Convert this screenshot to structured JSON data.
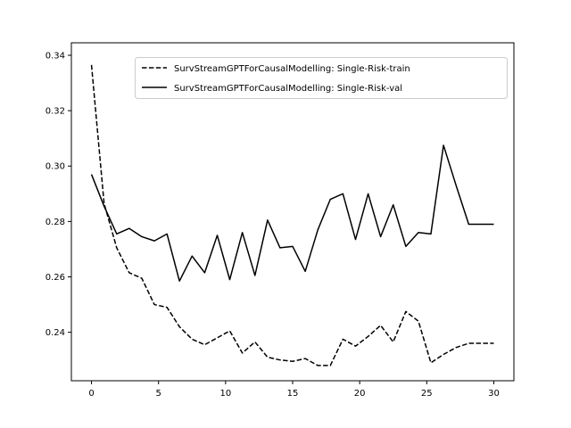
{
  "chart_data": {
    "type": "line",
    "title": "",
    "xlabel": "",
    "ylabel": "",
    "xlim": [
      -1.5,
      31.5
    ],
    "ylim": [
      0.2225,
      0.3445
    ],
    "xticks": [
      0,
      5,
      10,
      15,
      20,
      25,
      30
    ],
    "yticks": [
      0.24,
      0.26,
      0.28,
      0.3,
      0.32,
      0.34
    ],
    "ytick_labels": [
      "0.24",
      "0.26",
      "0.28",
      "0.30",
      "0.32",
      "0.34"
    ],
    "grid": false,
    "legend_position": "upper right",
    "x": [
      0,
      0.94,
      1.88,
      2.81,
      3.75,
      4.69,
      5.63,
      6.56,
      7.5,
      8.44,
      9.38,
      10.31,
      11.25,
      12.19,
      13.13,
      14.06,
      15,
      15.94,
      16.88,
      17.81,
      18.75,
      19.69,
      20.63,
      21.56,
      22.5,
      23.44,
      24.38,
      25.31,
      26.25,
      27.19,
      28.13,
      30
    ],
    "series": [
      {
        "name": "SurvStreamGPTForCausalModelling: Single-Risk-train",
        "style": "dashed",
        "color": "#000000",
        "values": [
          0.3365,
          0.2865,
          0.2705,
          0.2615,
          0.2595,
          0.25,
          0.249,
          0.242,
          0.2375,
          0.2355,
          0.238,
          0.2405,
          0.2325,
          0.2365,
          0.231,
          0.23,
          0.2295,
          0.2305,
          0.228,
          0.228,
          0.2375,
          0.235,
          0.2385,
          0.2425,
          0.2365,
          0.2475,
          0.244,
          0.229,
          0.232,
          0.2345,
          0.236,
          0.236
        ],
        "x_override": [
          0,
          0.94,
          1.88,
          2.81,
          3.75,
          4.69,
          5.63,
          6.56,
          7.5,
          8.44,
          9.38,
          10.31,
          11.25,
          12.19,
          13.13,
          14.06,
          15,
          15.94,
          16.88,
          17.81,
          18.75,
          19.69,
          20.63,
          21.56,
          22.5,
          23.44,
          24.38,
          25.31,
          26.25,
          27.19,
          28.13,
          30
        ]
      },
      {
        "name": "SurvStreamGPTForCausalModelling: Single-Risk-val",
        "style": "solid",
        "color": "#000000",
        "values": [
          0.297,
          0.2855,
          0.2755,
          0.2775,
          0.2745,
          0.273,
          0.2755,
          0.2585,
          0.2675,
          0.2615,
          0.275,
          0.259,
          0.276,
          0.2605,
          0.2805,
          0.2705,
          0.271,
          0.262,
          0.277,
          0.288,
          0.29,
          0.2735,
          0.29,
          0.2745,
          0.286,
          0.271,
          0.276,
          0.2755,
          0.3075,
          0.293,
          0.279,
          0.279
        ],
        "x_override": [
          0,
          0.94,
          1.88,
          2.81,
          3.75,
          4.69,
          5.63,
          6.56,
          7.5,
          8.44,
          9.38,
          10.31,
          11.25,
          12.19,
          13.13,
          14.06,
          15,
          15.94,
          16.88,
          17.81,
          18.75,
          19.69,
          20.63,
          21.56,
          22.5,
          23.44,
          24.38,
          25.31,
          26.25,
          27.19,
          28.13,
          30
        ]
      }
    ]
  }
}
